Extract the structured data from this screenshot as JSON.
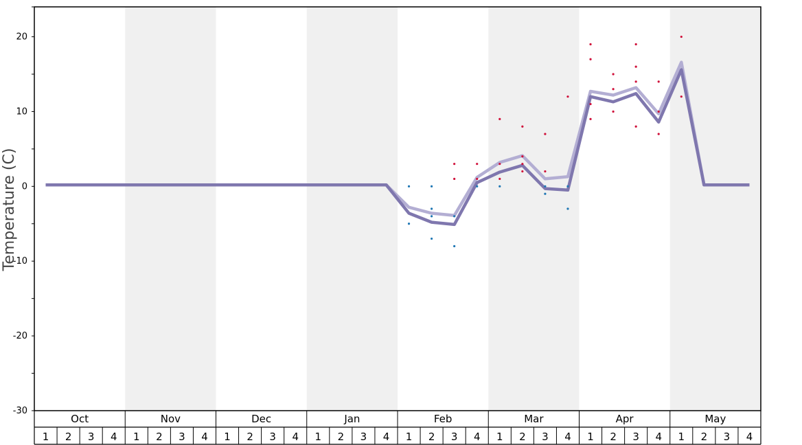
{
  "chart_data": {
    "type": "line",
    "ylabel": "Temperature (C)",
    "ylim": [
      -30,
      24
    ],
    "yticks": [
      20,
      10,
      0,
      -10,
      -20,
      -30
    ],
    "months": [
      "Oct",
      "Nov",
      "Dec",
      "Jan",
      "Feb",
      "Mar",
      "Apr",
      "May"
    ],
    "weeks": [
      "1",
      "2",
      "3",
      "4"
    ],
    "shaded_months": [
      "Nov",
      "Jan",
      "Mar",
      "May"
    ],
    "x_index": [
      0,
      1,
      2,
      3,
      4,
      5,
      6,
      7,
      8,
      9,
      10,
      11,
      12,
      13,
      14,
      15,
      16,
      17,
      18,
      19,
      20,
      21,
      22,
      23,
      24,
      25,
      26,
      27,
      28,
      29,
      30,
      31
    ],
    "series": [
      {
        "color": "#b3aed3",
        "values": [
          0.2,
          0.2,
          0.2,
          0.2,
          0.2,
          0.2,
          0.2,
          0.2,
          0.2,
          0.2,
          0.2,
          0.2,
          0.2,
          0.2,
          0.2,
          0.2,
          -2.8,
          -3.6,
          -3.9,
          1.2,
          3.2,
          4.1,
          1.0,
          1.3,
          12.7,
          12.2,
          13.2,
          9.7,
          16.6,
          0.2,
          0.2,
          0.2
        ]
      },
      {
        "color": "#7f77ae",
        "values": [
          0.2,
          0.2,
          0.2,
          0.2,
          0.2,
          0.2,
          0.2,
          0.2,
          0.2,
          0.2,
          0.2,
          0.2,
          0.2,
          0.2,
          0.2,
          0.2,
          -3.6,
          -4.8,
          -5.1,
          0.5,
          1.9,
          2.8,
          -0.3,
          -0.5,
          12.0,
          11.3,
          12.4,
          8.6,
          15.6,
          0.2,
          0.2,
          0.2
        ]
      }
    ],
    "high_points": {
      "color": "#d0103a",
      "points": [
        [
          18,
          3
        ],
        [
          18,
          1
        ],
        [
          19,
          3
        ],
        [
          19,
          1
        ],
        [
          20,
          9
        ],
        [
          20,
          3
        ],
        [
          20,
          1
        ],
        [
          21,
          8
        ],
        [
          21,
          4
        ],
        [
          21,
          3
        ],
        [
          21,
          2
        ],
        [
          22,
          7
        ],
        [
          22,
          2
        ],
        [
          23,
          12
        ],
        [
          24,
          19
        ],
        [
          24,
          17
        ],
        [
          24,
          11
        ],
        [
          24,
          9
        ],
        [
          25,
          15
        ],
        [
          25,
          13
        ],
        [
          25,
          10
        ],
        [
          26,
          19
        ],
        [
          26,
          16
        ],
        [
          26,
          14
        ],
        [
          26,
          8
        ],
        [
          27,
          14
        ],
        [
          27,
          10
        ],
        [
          27,
          7
        ],
        [
          28,
          20
        ],
        [
          28,
          12
        ]
      ]
    },
    "low_points": {
      "color": "#1f77b4",
      "points": [
        [
          16,
          0
        ],
        [
          16,
          -5
        ],
        [
          17,
          0
        ],
        [
          17,
          -3
        ],
        [
          17,
          -4
        ],
        [
          17,
          -7
        ],
        [
          18,
          -4
        ],
        [
          18,
          -8
        ],
        [
          19,
          0
        ],
        [
          20,
          0
        ],
        [
          22,
          0
        ],
        [
          22,
          -1
        ],
        [
          23,
          0
        ],
        [
          23,
          -3
        ]
      ]
    }
  }
}
